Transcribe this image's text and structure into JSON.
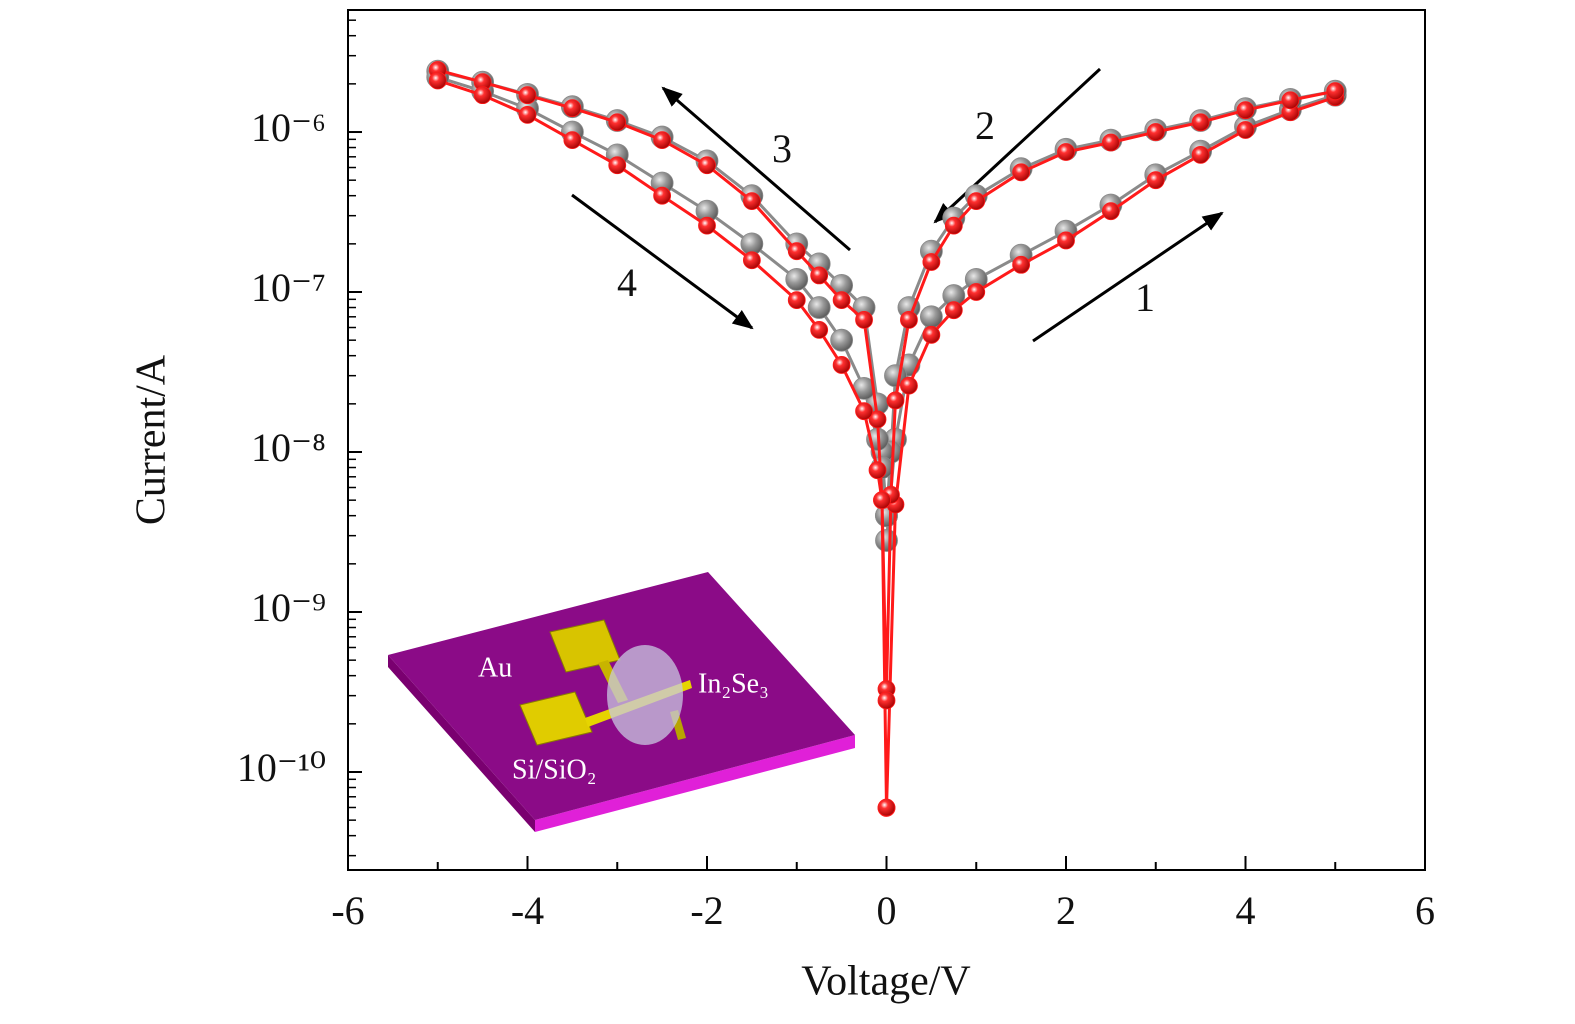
{
  "chart_data": {
    "type": "line",
    "xlabel": "Voltage/V",
    "ylabel": "Current/A",
    "xlim": [
      -6,
      6
    ],
    "xticks": [
      -6,
      -4,
      -2,
      0,
      2,
      4,
      6
    ],
    "ylim": [
      2.44e-11,
      5.79e-06
    ],
    "log_y": true,
    "yticks": [
      {
        "value": 1e-10,
        "label": "10⁻¹⁰"
      },
      {
        "value": 1e-09,
        "label": "10⁻⁹"
      },
      {
        "value": 1e-08,
        "label": "10⁻⁸"
      },
      {
        "value": 1e-07,
        "label": "10⁻⁷"
      },
      {
        "value": 1e-06,
        "label": "10⁻⁶"
      }
    ],
    "x": [
      0,
      0.1,
      0.25,
      0.5,
      0.75,
      1,
      1.5,
      2,
      2.5,
      3,
      3.5,
      4,
      4.5,
      5,
      5,
      4.5,
      4,
      3.5,
      3,
      2.5,
      2,
      1.5,
      1,
      0.75,
      0.5,
      0.25,
      0.1,
      0.05,
      0,
      0,
      -0.05,
      -0.1,
      -0.25,
      -0.5,
      -0.75,
      -1,
      -1.5,
      -2,
      -2.5,
      -3,
      -3.5,
      -4,
      -4.5,
      -5,
      -5,
      -4.5,
      -4,
      -3.5,
      -3,
      -2.5,
      -2,
      -1.5,
      -1,
      -0.75,
      -0.5,
      -0.25,
      -0.1,
      -0.05,
      0
    ],
    "series": [
      {
        "color": "#8a8a8a",
        "values": [
          2.8e-09,
          1.2e-08,
          3.5e-08,
          7e-08,
          9.5e-08,
          1.2e-07,
          1.7e-07,
          2.4e-07,
          3.5e-07,
          5.4e-07,
          7.6e-07,
          1.08e-06,
          1.38e-06,
          1.7e-06,
          1.8e-06,
          1.6e-06,
          1.4e-06,
          1.18e-06,
          1.03e-06,
          8.9e-07,
          7.8e-07,
          5.9e-07,
          4e-07,
          2.9e-07,
          1.8e-07,
          8e-08,
          3e-08,
          1e-08,
          4e-09,
          4e-09,
          1e-08,
          2e-08,
          8e-08,
          1.1e-07,
          1.5e-07,
          2e-07,
          4e-07,
          6.6e-07,
          9.3e-07,
          1.18e-06,
          1.44e-06,
          1.72e-06,
          2.05e-06,
          2.4e-06,
          2.2e-06,
          1.8e-06,
          1.4e-06,
          1e-06,
          7.2e-07,
          4.8e-07,
          3.2e-07,
          2e-07,
          1.2e-07,
          8e-08,
          5e-08,
          2.5e-08,
          1.2e-08,
          8e-09,
          4e-09
        ]
      },
      {
        "color": "#ff1a1a",
        "values": [
          5.96e-11,
          4.7e-09,
          2.6e-08,
          5.4e-08,
          7.7e-08,
          1e-07,
          1.48e-07,
          2.1e-07,
          3.2e-07,
          5e-07,
          7.2e-07,
          1.03e-06,
          1.33e-06,
          1.65e-06,
          1.8e-06,
          1.58e-06,
          1.37e-06,
          1.15e-06,
          1e-06,
          8.6e-07,
          7.5e-07,
          5.6e-07,
          3.7e-07,
          2.6e-07,
          1.54e-07,
          6.7e-08,
          2.1e-08,
          5.4e-09,
          3.3e-10,
          2.8e-10,
          5e-09,
          1.6e-08,
          6.7e-08,
          8.9e-08,
          1.27e-07,
          1.8e-07,
          3.7e-07,
          6.2e-07,
          8.9e-07,
          1.15e-06,
          1.41e-06,
          1.7e-06,
          2.05e-06,
          2.44e-06,
          2.1e-06,
          1.7e-06,
          1.28e-06,
          8.9e-07,
          6.2e-07,
          4e-07,
          2.6e-07,
          1.58e-07,
          8.9e-08,
          5.8e-08,
          3.5e-08,
          1.8e-08,
          7.7e-09,
          5e-09,
          6e-11
        ]
      }
    ],
    "annotations": [
      "1",
      "2",
      "3",
      "4",
      "Au",
      "In₂Se₃",
      "Si/SiO₂"
    ]
  }
}
